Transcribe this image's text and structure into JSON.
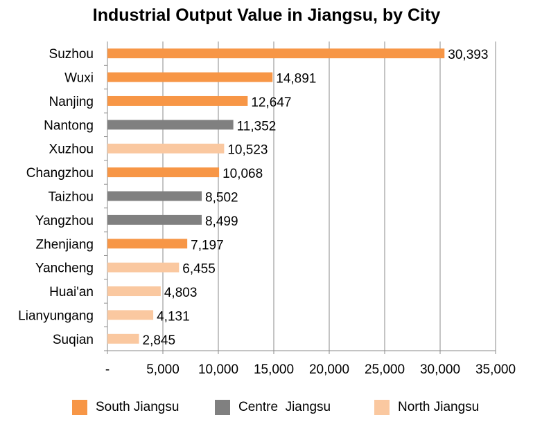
{
  "chart_data": {
    "type": "bar",
    "orientation": "horizontal",
    "title": "Industrial Output Value in Jiangsu, by City",
    "categories": [
      "Suzhou",
      "Wuxi",
      "Nanjing",
      "Nantong",
      "Xuzhou",
      "Changzhou",
      "Taizhou",
      "Yangzhou",
      "Zhenjiang",
      "Yancheng",
      "Huai'an",
      "Lianyungang",
      "Suqian"
    ],
    "values": [
      30393,
      14891,
      12647,
      11352,
      10523,
      10068,
      8502,
      8499,
      7197,
      6455,
      4803,
      4131,
      2845
    ],
    "value_labels": [
      "30,393",
      "14,891",
      "12,647",
      "11,352",
      "10,523",
      "10,068",
      "8,502",
      "8,499",
      "7,197",
      "6,455",
      "4,803",
      "4,131",
      "2,845"
    ],
    "region": [
      "South",
      "South",
      "South",
      "Centre",
      "North",
      "South",
      "Centre",
      "Centre",
      "South",
      "North",
      "North",
      "North",
      "North"
    ],
    "xlim": [
      0,
      35000
    ],
    "x_ticks": [
      0,
      5000,
      10000,
      15000,
      20000,
      25000,
      30000,
      35000
    ],
    "x_tick_labels": [
      "-",
      "5,000",
      "10,000",
      "15,000",
      "20,000",
      "25,000",
      "30,000",
      "35,000"
    ],
    "grid": "vertical",
    "legend_position": "bottom",
    "legend": [
      {
        "key": "South",
        "label": "South Jiangsu",
        "color": "#F79646"
      },
      {
        "key": "Centre",
        "label": "Centre  Jiangsu",
        "color": "#808080"
      },
      {
        "key": "North",
        "label": "North Jiangsu",
        "color": "#FAC8A0"
      }
    ]
  }
}
